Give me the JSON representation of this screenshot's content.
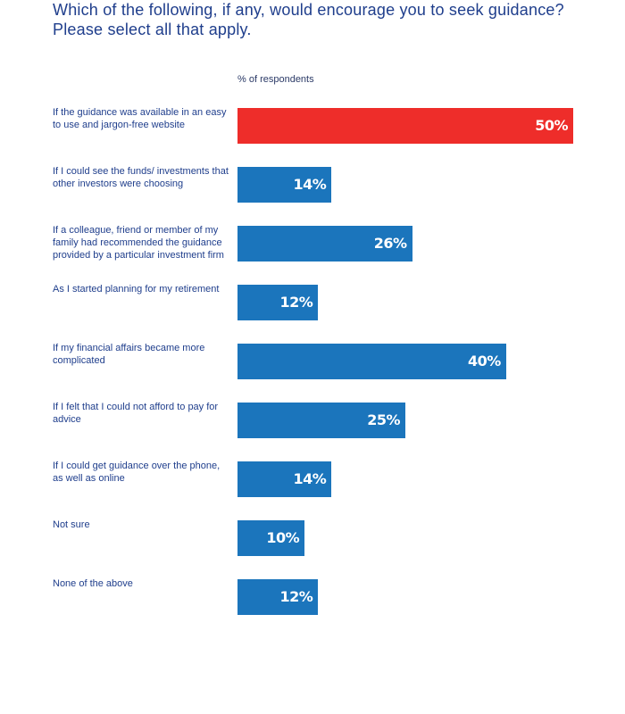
{
  "title": "Which of the following, if any, would encourage you to seek guidance? Please select all that apply.",
  "colors": {
    "highlight": "#ee2d2a",
    "bar": "#1b75bc",
    "text": "#1f3e8c"
  },
  "chart_data": {
    "type": "bar",
    "orientation": "horizontal",
    "axis_label": "% of respondents",
    "xlim": [
      0,
      60
    ],
    "categories": [
      "If the guidance was available in an easy to use and jargon-free website",
      "If I could see the funds/ investments that other investors were choosing",
      "If a colleague, friend or member of my family had recommended the guidance provided by a particular investment firm",
      "As I started planning for my retirement",
      "If my financial affairs became more complicated",
      "If I felt that I could not afford to pay for advice",
      "If I could get guidance over the phone, as well as online",
      "Not sure",
      "None of the above"
    ],
    "values": [
      50,
      14,
      26,
      12,
      40,
      25,
      14,
      10,
      12
    ],
    "value_labels": [
      "50%",
      "14%",
      "26%",
      "12%",
      "40%",
      "25%",
      "14%",
      "10%",
      "12%"
    ],
    "highlight_index": 0,
    "grid": false,
    "legend": "none"
  }
}
